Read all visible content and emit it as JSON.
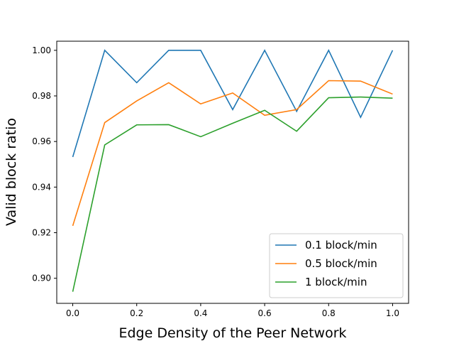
{
  "chart_data": {
    "type": "line",
    "title": "",
    "xlabel": "Edge Density of the Peer Network",
    "ylabel": "Valid block ratio",
    "x": [
      0.0,
      0.1,
      0.2,
      0.3,
      0.4,
      0.5,
      0.6,
      0.7,
      0.8,
      0.9,
      1.0
    ],
    "xlim": [
      -0.05,
      1.05
    ],
    "ylim": [
      0.889,
      1.004
    ],
    "xticks": [
      0.0,
      0.2,
      0.4,
      0.6,
      0.8,
      1.0
    ],
    "xtick_labels": [
      "0.0",
      "0.2",
      "0.4",
      "0.6",
      "0.8",
      "1.0"
    ],
    "yticks": [
      0.9,
      0.92,
      0.94,
      0.96,
      0.98,
      1.0
    ],
    "ytick_labels": [
      "0.90",
      "0.92",
      "0.94",
      "0.96",
      "0.98",
      "1.00"
    ],
    "grid": false,
    "legend_position": "lower-right",
    "series": [
      {
        "name": "0.1 block/min",
        "color": "#1f77b4",
        "values": [
          0.9532,
          1.0,
          0.9858,
          1.0,
          1.0,
          0.974,
          1.0,
          0.9732,
          1.0,
          0.9706,
          1.0
        ]
      },
      {
        "name": "0.5 block/min",
        "color": "#ff7f0e",
        "values": [
          0.923,
          0.9683,
          0.9778,
          0.9858,
          0.9765,
          0.9813,
          0.9715,
          0.974,
          0.9867,
          0.9865,
          0.9808
        ]
      },
      {
        "name": "1 block/min",
        "color": "#2ca02c",
        "values": [
          0.8941,
          0.9585,
          0.9673,
          0.9674,
          0.9621,
          0.968,
          0.9737,
          0.9645,
          0.9792,
          0.9795,
          0.979
        ]
      }
    ]
  }
}
